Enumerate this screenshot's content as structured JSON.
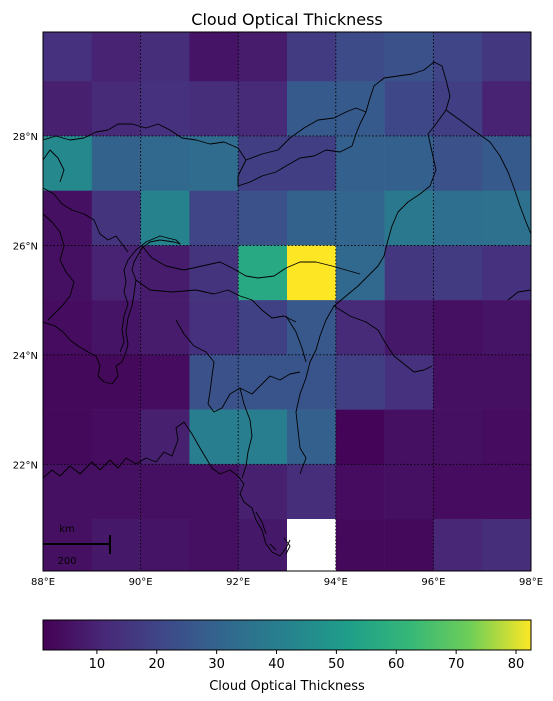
{
  "chart_data": {
    "type": "heatmap",
    "title": "Cloud Optical Thickness",
    "xlabel": "",
    "ylabel": "",
    "x_ticks": [
      {
        "value": 88,
        "label": "88°E"
      },
      {
        "value": 90,
        "label": "90°E"
      },
      {
        "value": 92,
        "label": "92°E"
      },
      {
        "value": 94,
        "label": "94°E"
      },
      {
        "value": 96,
        "label": "96°E"
      },
      {
        "value": 98,
        "label": "98°E"
      }
    ],
    "y_ticks": [
      {
        "value": 22,
        "label": "22°N"
      },
      {
        "value": 24,
        "label": "24°N"
      },
      {
        "value": 26,
        "label": "26°N"
      },
      {
        "value": 28,
        "label": "28°N"
      }
    ],
    "lon_range": [
      88,
      98
    ],
    "lat_range": [
      20,
      30
    ],
    "grid": true,
    "colormap": "viridis",
    "colorbar": {
      "label": "Cloud Optical Thickness",
      "range": [
        1,
        82.5
      ],
      "ticks": [
        10,
        20,
        30,
        40,
        50,
        60,
        70,
        80
      ],
      "orientation": "horizontal"
    },
    "cell_size_deg": 1,
    "cells_lat_from_north": [
      29.5,
      28.5,
      27.5,
      26.5,
      25.5,
      24.5,
      23.5,
      22.5,
      21.5,
      20.5
    ],
    "cells_lon_from_west": [
      88.5,
      89.5,
      90.5,
      91.5,
      92.5,
      93.5,
      94.5,
      95.5,
      96.5,
      97.5
    ],
    "values": [
      [
        14,
        10,
        13,
        6,
        8,
        17,
        22,
        24,
        20,
        16
      ],
      [
        9,
        12,
        14,
        13,
        12,
        27,
        27,
        21,
        18,
        10
      ],
      [
        44,
        30,
        32,
        33,
        18,
        18,
        29,
        29,
        24,
        27
      ],
      [
        5,
        15,
        42,
        20,
        24,
        30,
        31,
        38,
        34,
        35
      ],
      [
        5,
        10,
        8,
        15,
        56,
        82.5,
        32,
        16,
        17,
        14
      ],
      [
        4,
        6,
        8,
        14,
        19,
        26,
        12,
        7,
        5,
        6
      ],
      [
        3,
        3,
        4,
        24,
        25,
        25,
        18,
        14,
        5,
        5
      ],
      [
        3,
        4,
        9,
        40,
        40,
        29,
        2,
        5,
        5,
        4
      ],
      [
        5,
        5,
        5,
        5,
        9,
        13,
        4,
        5,
        4,
        4
      ],
      [
        5,
        7,
        6,
        5,
        7,
        null,
        3,
        3,
        11,
        13
      ]
    ]
  },
  "scale_bar": {
    "unit": "km",
    "length_label": "200"
  }
}
